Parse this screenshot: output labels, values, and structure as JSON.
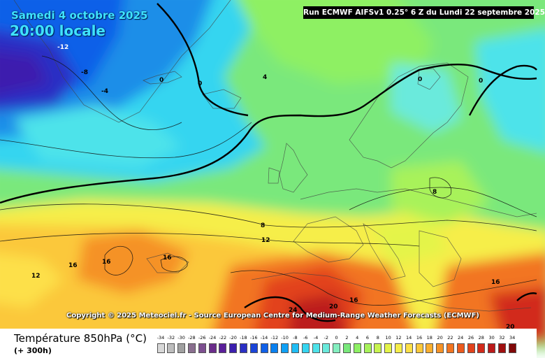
{
  "header": {
    "date": "Samedi 4 octobre 2025",
    "time": "20:00 locale",
    "run": "Run ECMWF AIFSv1 0.25° 6 Z du Lundi 22 septembre 2025"
  },
  "copyright": "Copyright © 2025 Meteociel.fr - Source European Centre for Medium-Range Weather Forecasts (ECMWF)",
  "parameter": {
    "title": "Température 850hPa (°C)",
    "subtitle": "(+ 300h)"
  },
  "scale": {
    "labels": [
      "-34",
      "-32",
      "-30",
      "-28",
      "-26",
      "-24",
      "-22",
      "-20",
      "-18",
      "-16",
      "-14",
      "-12",
      "-10",
      "-8",
      "-6",
      "-4",
      "-2",
      "0",
      "2",
      "4",
      "6",
      "8",
      "10",
      "12",
      "14",
      "16",
      "18",
      "20",
      "22",
      "24",
      "26",
      "28",
      "30",
      "32",
      "34"
    ],
    "colors": [
      "#d8d8d8",
      "#bdbdbd",
      "#a0a0a0",
      "#8a6f8f",
      "#7d4f90",
      "#6a2c8a",
      "#5a1f9a",
      "#3c1fae",
      "#2a2fc4",
      "#1a44d8",
      "#1060e8",
      "#0a80f0",
      "#10a0f5",
      "#20bdf5",
      "#36d5f0",
      "#4ee3ea",
      "#6aeadc",
      "#84efc0",
      "#7ae87c",
      "#8ef064",
      "#a8f25a",
      "#c8f450",
      "#e4f44a",
      "#f6ee4a",
      "#fde048",
      "#fbc83a",
      "#f9ae2e",
      "#f59226",
      "#f27420",
      "#ec5a1e",
      "#e2421c",
      "#d22a1a",
      "#bc1a1a",
      "#a01010",
      "#800808"
    ]
  },
  "isotherms": {
    "labels": [
      "-12",
      "-8",
      "-4",
      "0",
      "0",
      "4",
      "0",
      "0",
      "8",
      "8",
      "12",
      "12",
      "16",
      "16",
      "16",
      "16",
      "24",
      "20",
      "16",
      "20"
    ]
  }
}
